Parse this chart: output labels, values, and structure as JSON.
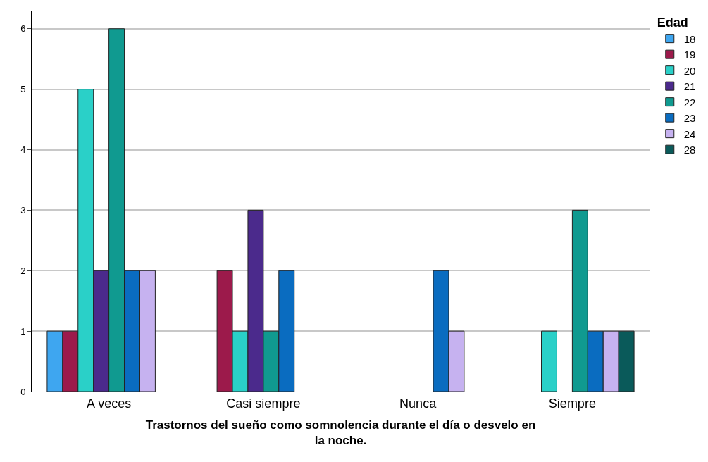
{
  "chart_data": {
    "type": "bar",
    "xlabel": "Trastornos del sueño como somnolencia durante el día o desvelo en la noche.",
    "legend_title": "Edad",
    "categories": [
      "A veces",
      "Casi siempre",
      "Nunca",
      "Siempre"
    ],
    "series": [
      {
        "name": "18",
        "color": "#3ea6f0",
        "values": [
          1,
          null,
          null,
          null
        ]
      },
      {
        "name": "19",
        "color": "#9c1a4b",
        "values": [
          1,
          2,
          null,
          null
        ]
      },
      {
        "name": "20",
        "color": "#2ad0c8",
        "values": [
          5,
          1,
          null,
          1
        ]
      },
      {
        "name": "21",
        "color": "#4b2a8c",
        "values": [
          2,
          3,
          null,
          null
        ]
      },
      {
        "name": "22",
        "color": "#109a90",
        "values": [
          6,
          1,
          null,
          3
        ]
      },
      {
        "name": "23",
        "color": "#0a6cc0",
        "values": [
          2,
          2,
          2,
          1
        ]
      },
      {
        "name": "24",
        "color": "#c6b2f0",
        "values": [
          2,
          null,
          1,
          1
        ]
      },
      {
        "name": "28",
        "color": "#0a5a5a",
        "values": [
          null,
          null,
          null,
          1
        ]
      }
    ],
    "ylim": [
      0,
      6.3
    ],
    "yticks": [
      0,
      1,
      2,
      3,
      4,
      5,
      6
    ],
    "grid": "y",
    "legend": "top right"
  }
}
